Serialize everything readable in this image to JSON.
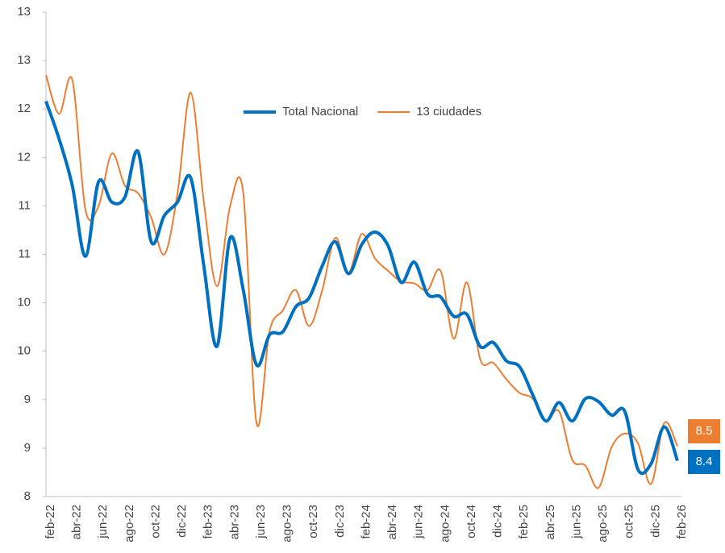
{
  "chart_data": {
    "type": "line",
    "categories": [
      "feb-22",
      null,
      "abr-22",
      null,
      "jun-22",
      null,
      "ago-22",
      null,
      "oct-22",
      null,
      "dic-22",
      null,
      "feb-23",
      null,
      "abr-23",
      null,
      "jun-23",
      null,
      "ago-23",
      null,
      "oct-23",
      null,
      "dic-23",
      null,
      "feb-24",
      null,
      "abr-24",
      null,
      "jun-24",
      null,
      "ago-24",
      null,
      "oct-24",
      null,
      "dic-24",
      null,
      "feb-25",
      null,
      "abr-25",
      null,
      "jun-25",
      null,
      "ago-25",
      null,
      "oct-25",
      null,
      "dic-25",
      null,
      "feb-26"
    ],
    "series": [
      {
        "name": "Total Nacional",
        "color": "#0070c0",
        "values": [
          12.08,
          11.69,
          11.21,
          10.48,
          11.25,
          11.04,
          11.09,
          11.56,
          10.63,
          10.9,
          11.04,
          11.29,
          10.38,
          9.55,
          10.67,
          10.13,
          9.36,
          9.67,
          9.7,
          9.96,
          10.05,
          10.38,
          10.63,
          10.3,
          10.6,
          10.73,
          10.59,
          10.21,
          10.42,
          10.09,
          10.06,
          9.86,
          9.88,
          9.55,
          9.59,
          9.4,
          9.34,
          9.05,
          8.78,
          8.97,
          8.78,
          9.01,
          8.98,
          8.84,
          8.88,
          8.28,
          8.34,
          8.72,
          8.37
        ],
        "value_labels": [
          null,
          null,
          null,
          null,
          null,
          null,
          null,
          null,
          null,
          null,
          null,
          null,
          null,
          null,
          null,
          null,
          null,
          null,
          null,
          null,
          null,
          null,
          null,
          null,
          null,
          null,
          null,
          null,
          null,
          null,
          null,
          null,
          null,
          null,
          null,
          null,
          null,
          null,
          null,
          null,
          null,
          null,
          null,
          null,
          null,
          null,
          null,
          null,
          "8.4"
        ]
      },
      {
        "name": "13 ciudades",
        "color": "#ed7d31",
        "values": [
          12.35,
          11.95,
          12.3,
          10.96,
          11.0,
          11.54,
          11.21,
          11.13,
          10.88,
          10.5,
          11.13,
          12.17,
          11.04,
          10.17,
          11.0,
          11.13,
          8.76,
          9.71,
          9.92,
          10.13,
          9.76,
          10.13,
          10.67,
          10.31,
          10.71,
          10.46,
          10.33,
          10.22,
          10.2,
          10.13,
          10.33,
          9.63,
          10.21,
          9.42,
          9.38,
          9.21,
          9.07,
          9.01,
          8.78,
          8.88,
          8.38,
          8.32,
          8.09,
          8.51,
          8.65,
          8.55,
          8.13,
          8.76,
          8.52
        ],
        "value_labels": [
          null,
          null,
          null,
          null,
          null,
          null,
          null,
          null,
          null,
          null,
          null,
          null,
          null,
          null,
          null,
          null,
          null,
          null,
          null,
          null,
          null,
          null,
          null,
          null,
          null,
          null,
          null,
          null,
          null,
          null,
          null,
          null,
          null,
          null,
          null,
          null,
          null,
          null,
          null,
          null,
          null,
          null,
          null,
          null,
          null,
          null,
          null,
          null,
          "8.5"
        ]
      }
    ],
    "ylim": [
      8,
      13
    ],
    "yticks": [
      13,
      {
        "value": 12.5,
        "label": "13"
      },
      12,
      {
        "value": 11.5,
        "label": "12"
      },
      11,
      {
        "value": 10.5,
        "label": "11"
      },
      10,
      {
        "value": 9.5,
        "label": "10"
      },
      9,
      {
        "value": 8.5,
        "label": "9"
      },
      8
    ],
    "legend": "top",
    "grid": false
  }
}
